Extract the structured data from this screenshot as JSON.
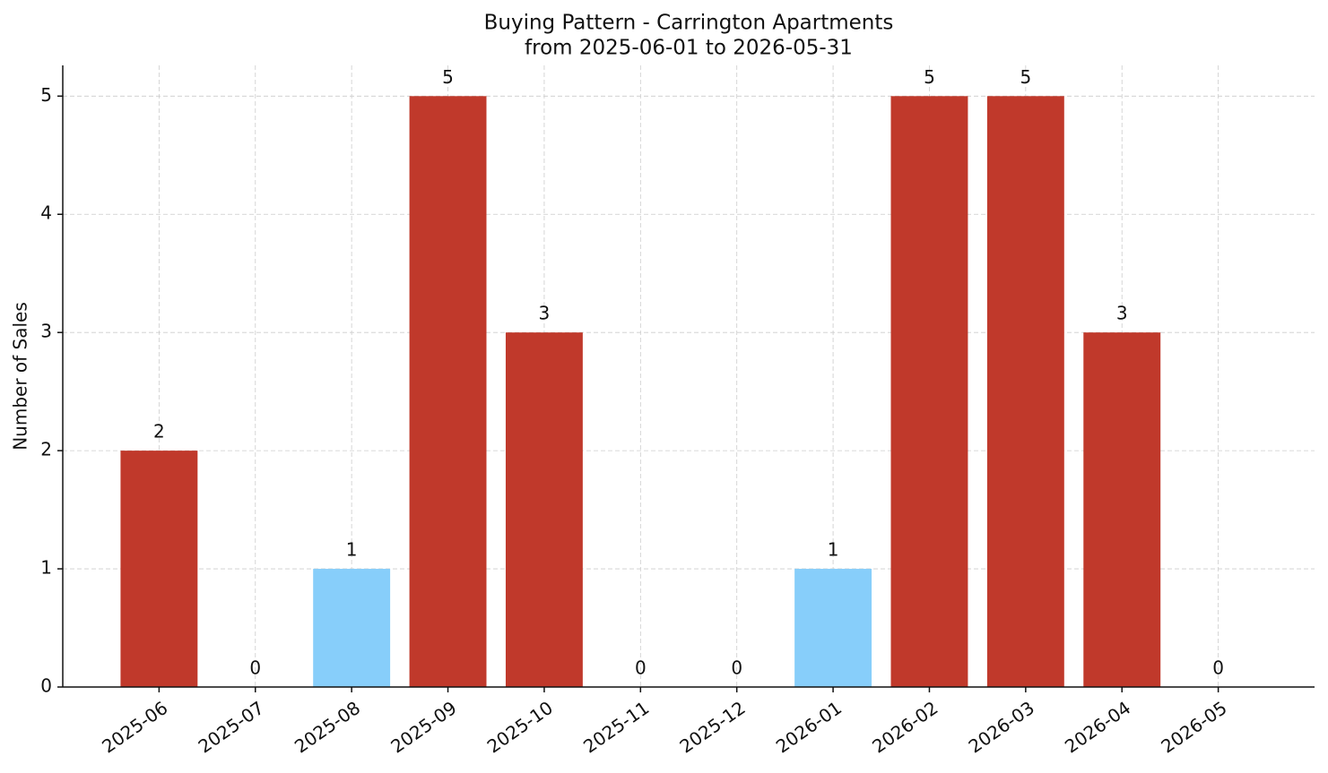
{
  "chart_data": {
    "type": "bar",
    "title": "Buying Pattern - Carrington Apartments",
    "subtitle": "from 2025-06-01 to 2026-05-31",
    "y_label": "Number of Sales",
    "categories": [
      "2025-06",
      "2025-07",
      "2025-08",
      "2025-09",
      "2025-10",
      "2025-11",
      "2025-12",
      "2026-01",
      "2026-02",
      "2026-03",
      "2026-04",
      "2026-05"
    ],
    "values": [
      2,
      0,
      1,
      5,
      3,
      0,
      0,
      1,
      5,
      5,
      3,
      0
    ],
    "colors": [
      "#c0392b",
      "#c0392b",
      "#87cefa",
      "#c0392b",
      "#c0392b",
      "#c0392b",
      "#c0392b",
      "#87cefa",
      "#c0392b",
      "#c0392b",
      "#c0392b",
      "#c0392b"
    ],
    "ylim": [
      0,
      5.26
    ],
    "yticks": [
      0,
      1,
      2,
      3,
      4,
      5
    ],
    "grid": true
  }
}
